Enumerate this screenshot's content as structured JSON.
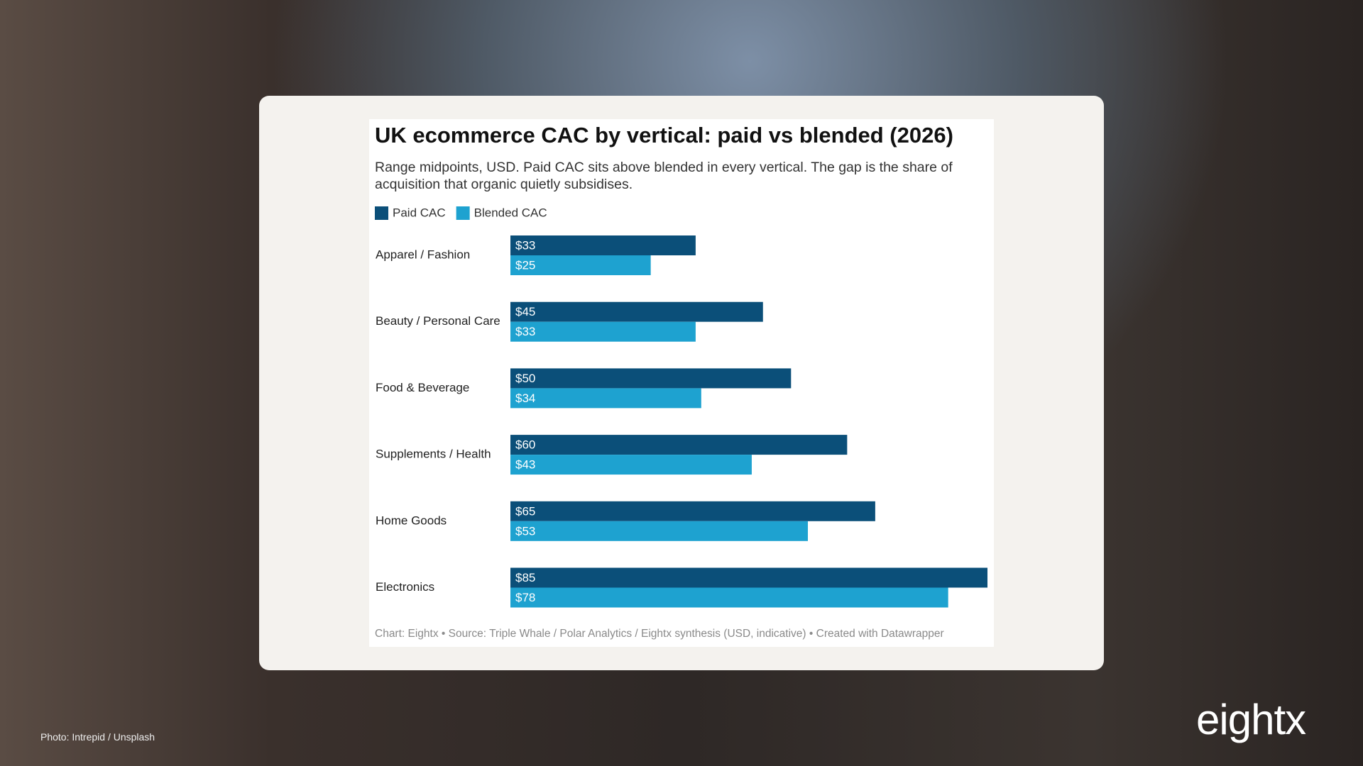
{
  "chart_data": {
    "type": "bar",
    "orientation": "horizontal",
    "title": "UK ecommerce CAC by vertical: paid vs blended (2026)",
    "subtitle": "Range midpoints, USD. Paid CAC sits above blended in every vertical. The gap is the share of acquisition that organic quietly subsidises.",
    "categories": [
      "Apparel / Fashion",
      "Beauty / Personal Care",
      "Food & Beverage",
      "Supplements / Health",
      "Home Goods",
      "Electronics"
    ],
    "series": [
      {
        "name": "Paid CAC",
        "color": "#0b4f79",
        "values": [
          33,
          45,
          50,
          60,
          65,
          85
        ],
        "value_labels": [
          "$33",
          "$45",
          "$50",
          "$60",
          "$65",
          "$85"
        ]
      },
      {
        "name": "Blended CAC",
        "color": "#1ea2d0",
        "values": [
          25,
          33,
          34,
          43,
          53,
          78
        ],
        "value_labels": [
          "$25",
          "$33",
          "$34",
          "$43",
          "$53",
          "$78"
        ]
      }
    ],
    "xlim": [
      0,
      85
    ],
    "legend": "top-left",
    "source": "Chart: Eightx • Source: Triple Whale / Polar Analytics / Eightx synthesis (USD, indicative) • Created with Datawrapper"
  },
  "photo_credit": "Photo: Intrepid / Unsplash",
  "brand": "eightx"
}
